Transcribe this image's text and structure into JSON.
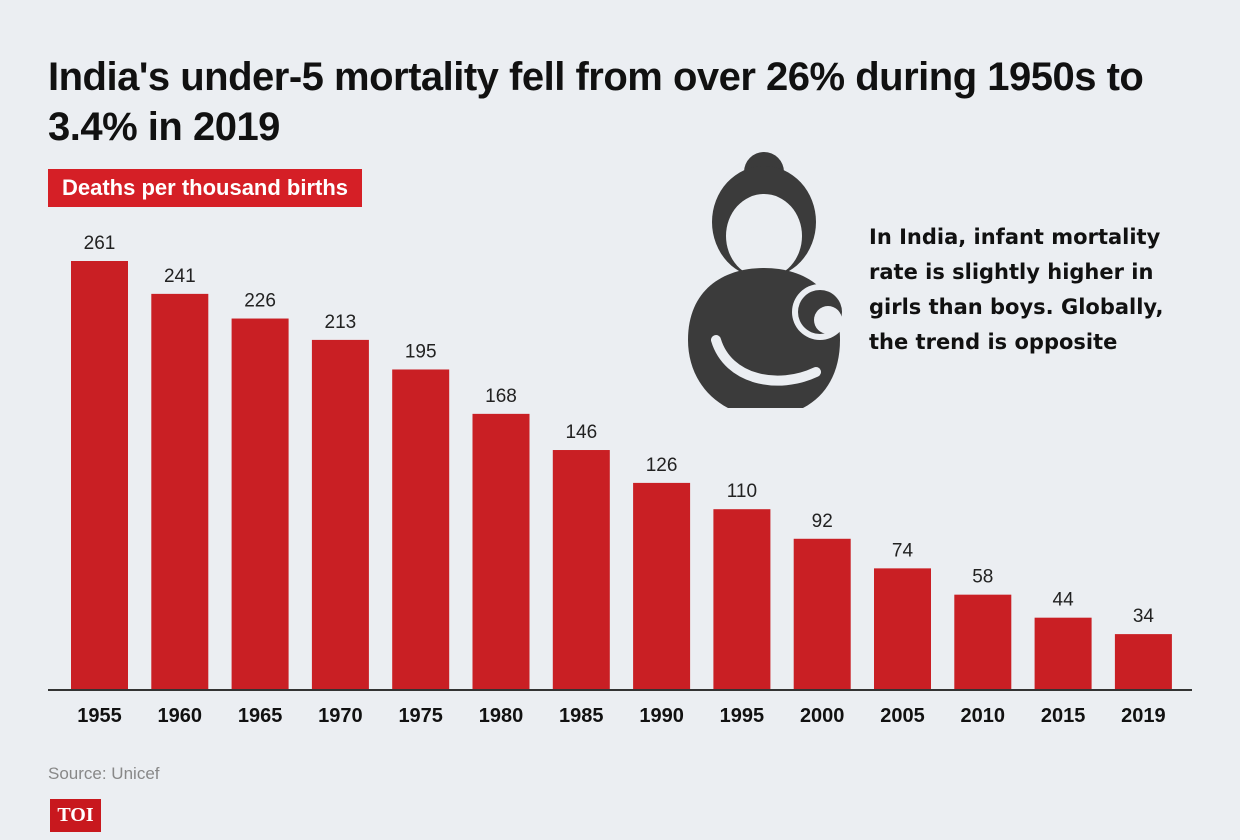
{
  "title": "India's under-5 mortality fell from over 26% during 1950s to 3.4% in 2019",
  "subtitle": "Deaths per thousand births",
  "annotation": "In India, infant mortality rate is slightly higher in girls than boys. Globally, the trend is opposite",
  "source": "Source: Unicef",
  "logo_text": "TOI",
  "icon": "mother-holding-baby-icon",
  "colors": {
    "bar": "#c91f24",
    "label_bg": "#d51f26",
    "background": "#ebeef2",
    "icon": "#3b3b3b"
  },
  "chart_data": {
    "type": "bar",
    "title": "India's under-5 mortality fell from over 26% during 1950s to 3.4% in 2019",
    "subtitle": "Deaths per thousand births",
    "categories": [
      "1955",
      "1960",
      "1965",
      "1970",
      "1975",
      "1980",
      "1985",
      "1990",
      "1995",
      "2000",
      "2005",
      "2010",
      "2015",
      "2019"
    ],
    "values": [
      261,
      241,
      226,
      213,
      195,
      168,
      146,
      126,
      110,
      92,
      74,
      58,
      44,
      34
    ],
    "xlabel": "",
    "ylabel": "",
    "ylim": [
      0,
      261
    ],
    "grid": false,
    "data_labels": true
  }
}
